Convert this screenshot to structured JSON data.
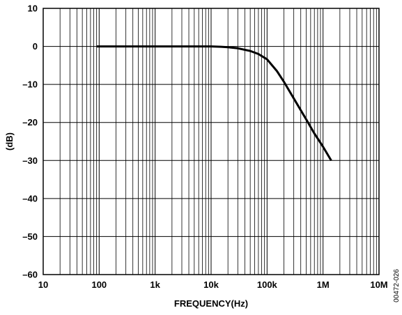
{
  "chart_data": {
    "type": "line",
    "title": "",
    "xlabel": "FREQUENCY(Hz)",
    "ylabel": "(dB)",
    "xscale": "log",
    "xlim": [
      10,
      10000000
    ],
    "ylim": [
      -60,
      10
    ],
    "grid": true,
    "x_ticks": [
      "10",
      "100",
      "1k",
      "10k",
      "100k",
      "1M",
      "10M"
    ],
    "y_ticks": [
      "10",
      "0",
      "–10",
      "–20",
      "–30",
      "–40",
      "–50",
      "–60"
    ],
    "series": [
      {
        "color": "#000000",
        "x": [
          90,
          1000,
          5000,
          10000,
          15000,
          20000,
          30000,
          50000,
          70000,
          100000,
          150000,
          200000,
          300000,
          500000,
          700000,
          1000000,
          1400000
        ],
        "y": [
          0,
          0,
          0,
          0,
          -0.1,
          -0.2,
          -0.5,
          -1.2,
          -2.0,
          -3.4,
          -6.5,
          -9.3,
          -13.7,
          -19.2,
          -22.9,
          -26.4,
          -30
        ]
      }
    ],
    "annotation": "00472-026"
  }
}
